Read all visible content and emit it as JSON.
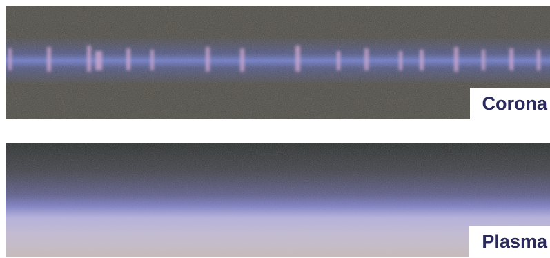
{
  "panels": [
    {
      "label": "Corona"
    },
    {
      "label": "Plasma"
    }
  ]
}
